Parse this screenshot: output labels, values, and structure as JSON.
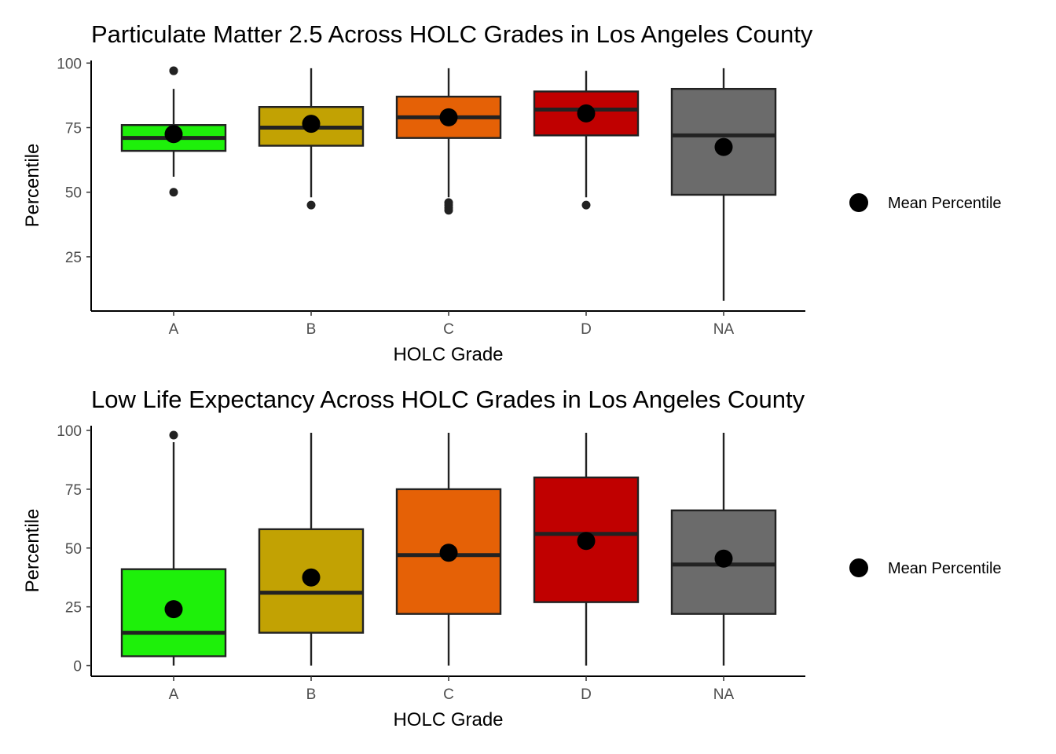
{
  "chart_data": [
    {
      "type": "boxplot",
      "title": "Particulate Matter 2.5 Across HOLC Grades in Los Angeles County",
      "xlabel": "HOLC Grade",
      "ylabel": "Percentile",
      "ylim": [
        4,
        101
      ],
      "yticks": [
        25,
        50,
        75,
        100
      ],
      "categories": [
        "A",
        "B",
        "C",
        "D",
        "NA"
      ],
      "colors": [
        "#1ef00a",
        "#c2a203",
        "#e56106",
        "#c00000",
        "#6b6b6b"
      ],
      "boxes": [
        {
          "q1": 66,
          "median": 71,
          "q3": 76,
          "whisker_low": 56,
          "whisker_high": 90,
          "outliers": [
            97,
            97,
            50
          ],
          "mean": 72.5
        },
        {
          "q1": 68,
          "median": 75,
          "q3": 83,
          "whisker_low": 48,
          "whisker_high": 98,
          "outliers": [
            45
          ],
          "mean": 76.5
        },
        {
          "q1": 71,
          "median": 79,
          "q3": 87,
          "whisker_low": 48,
          "whisker_high": 98,
          "outliers": [
            46,
            45,
            44,
            43
          ],
          "mean": 79
        },
        {
          "q1": 72,
          "median": 82,
          "q3": 89,
          "whisker_low": 48,
          "whisker_high": 97,
          "outliers": [
            45
          ],
          "mean": 80.5
        },
        {
          "q1": 49,
          "median": 72,
          "q3": 90,
          "whisker_low": 8,
          "whisker_high": 98,
          "outliers": [],
          "mean": 67.5
        }
      ],
      "legend": {
        "label": "Mean Percentile",
        "position": "right"
      },
      "grid": false
    },
    {
      "type": "boxplot",
      "title": "Low Life Expectancy Across HOLC Grades in Los Angeles County",
      "xlabel": "HOLC Grade",
      "ylabel": "Percentile",
      "ylim": [
        -4.5,
        102
      ],
      "yticks": [
        0,
        25,
        50,
        75,
        100
      ],
      "categories": [
        "A",
        "B",
        "C",
        "D",
        "NA"
      ],
      "colors": [
        "#1ef00a",
        "#c2a203",
        "#e56106",
        "#c00000",
        "#6b6b6b"
      ],
      "boxes": [
        {
          "q1": 4,
          "median": 14,
          "q3": 41,
          "whisker_low": 0,
          "whisker_high": 95,
          "outliers": [
            98
          ],
          "mean": 24
        },
        {
          "q1": 14,
          "median": 31,
          "q3": 58,
          "whisker_low": 0,
          "whisker_high": 99,
          "outliers": [],
          "mean": 37.5
        },
        {
          "q1": 22,
          "median": 47,
          "q3": 75,
          "whisker_low": 0,
          "whisker_high": 99,
          "outliers": [],
          "mean": 48
        },
        {
          "q1": 27,
          "median": 56,
          "q3": 80,
          "whisker_low": 0,
          "whisker_high": 99,
          "outliers": [],
          "mean": 53
        },
        {
          "q1": 22,
          "median": 43,
          "q3": 66,
          "whisker_low": 0,
          "whisker_high": 99,
          "outliers": [],
          "mean": 45.5
        }
      ],
      "legend": {
        "label": "Mean Percentile",
        "position": "right"
      },
      "grid": false
    }
  ]
}
